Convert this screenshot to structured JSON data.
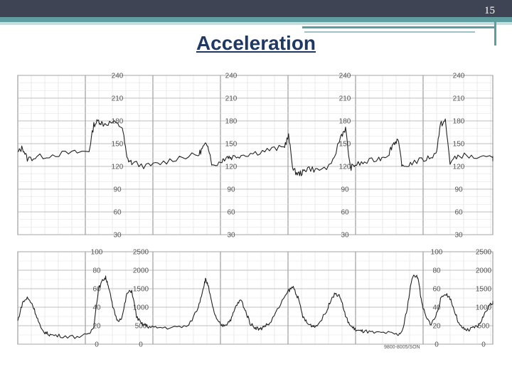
{
  "slide": {
    "number": "15",
    "title": "Acceleration"
  },
  "colors": {
    "header_bar": "#3e4453",
    "accent_teal": "#5f9ea0",
    "title": "#1f3864",
    "trace": "#222222",
    "grid": "#cccccc"
  },
  "chart_data": [
    {
      "type": "line",
      "name_role": "fetal-heart-rate",
      "ticks": [
        "240",
        "210",
        "180",
        "150",
        "120",
        "90",
        "60",
        "30"
      ],
      "ylim": [
        30,
        240
      ],
      "xlim": [
        0,
        100
      ],
      "grid": true,
      "series": [
        {
          "x": [
            0,
            1,
            2,
            4,
            8,
            12,
            15,
            16,
            17,
            18,
            20,
            22,
            23,
            24,
            27,
            30,
            34,
            38,
            39,
            40,
            41,
            43,
            44,
            45,
            47,
            50,
            53,
            56,
            57,
            58,
            59,
            60,
            61,
            63,
            66,
            68,
            69,
            70,
            71,
            73,
            76,
            78,
            79,
            80,
            81,
            83,
            86,
            88,
            89,
            90,
            91,
            93,
            96,
            100
          ],
          "y": [
            138,
            145,
            130,
            132,
            136,
            138,
            140,
            175,
            180,
            176,
            178,
            172,
            130,
            125,
            120,
            124,
            132,
            135,
            145,
            150,
            120,
            128,
            133,
            132,
            135,
            138,
            142,
            145,
            160,
            115,
            110,
            112,
            118,
            115,
            120,
            160,
            170,
            118,
            122,
            125,
            130,
            136,
            150,
            155,
            118,
            125,
            130,
            136,
            175,
            180,
            125,
            135,
            132,
            130
          ]
        }
      ]
    },
    {
      "type": "line",
      "name_role": "uterine-contractions",
      "ticks_left": [
        "100",
        "80",
        "60",
        "40",
        "20",
        "0"
      ],
      "ticks_right": [
        "2500",
        "2000",
        "1500",
        "1000",
        "500",
        "0"
      ],
      "ylim": [
        0,
        100
      ],
      "xlim": [
        0,
        100
      ],
      "grid": true,
      "series": [
        {
          "x": [
            0,
            1,
            2,
            3,
            4,
            5,
            6,
            7,
            9,
            12,
            15,
            16,
            17,
            18,
            18.5,
            19,
            20,
            21,
            22,
            23,
            24,
            25,
            26,
            27,
            28,
            30,
            33,
            36,
            38,
            39,
            39.5,
            40,
            41,
            42,
            43,
            44,
            45,
            46,
            47,
            48,
            49,
            50,
            51,
            52,
            53,
            55,
            57,
            58,
            59,
            60,
            61,
            62,
            63,
            65,
            66,
            67,
            68,
            69,
            70,
            71,
            72,
            73,
            75,
            78,
            80,
            81,
            82,
            83,
            84,
            84.5,
            85,
            86,
            87,
            88,
            89,
            90,
            91,
            92,
            93,
            94,
            95,
            96,
            97,
            98,
            99,
            100
          ],
          "y": [
            25,
            45,
            50,
            44,
            30,
            15,
            12,
            10,
            9,
            8,
            10,
            20,
            60,
            70,
            72,
            65,
            40,
            25,
            30,
            55,
            58,
            30,
            22,
            20,
            18,
            18,
            18,
            20,
            40,
            60,
            70,
            65,
            40,
            25,
            20,
            22,
            28,
            42,
            48,
            35,
            22,
            18,
            16,
            20,
            22,
            40,
            58,
            62,
            50,
            30,
            22,
            20,
            20,
            35,
            50,
            55,
            50,
            30,
            20,
            16,
            14,
            14,
            12,
            12,
            10,
            14,
            40,
            72,
            75,
            65,
            45,
            28,
            22,
            30,
            48,
            55,
            50,
            35,
            20,
            16,
            15,
            18,
            20,
            30,
            40,
            45
          ]
        }
      ]
    }
  ],
  "strip_code": "9800-8005/SON"
}
